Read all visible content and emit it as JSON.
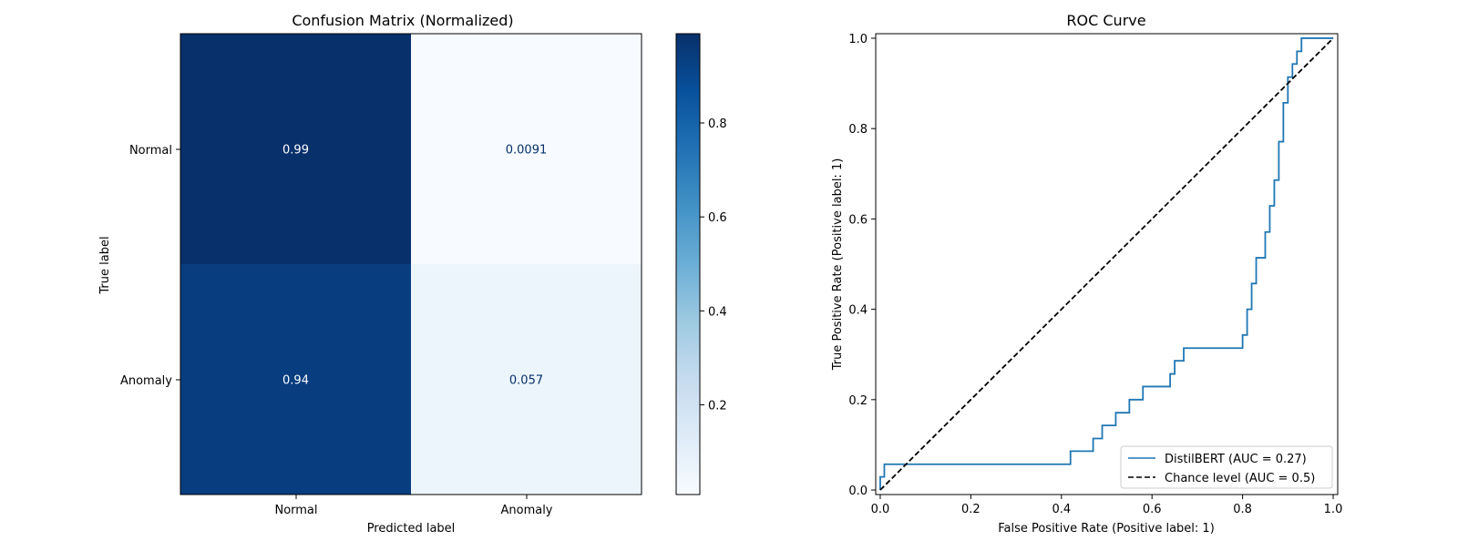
{
  "chart_data": [
    {
      "type": "heatmap",
      "title": "Confusion Matrix (Normalized)",
      "xlabel": "Predicted label",
      "ylabel": "True label",
      "x_categories": [
        "Normal",
        "Anomaly"
      ],
      "y_categories": [
        "Normal",
        "Anomaly"
      ],
      "values": [
        [
          0.99,
          0.0091
        ],
        [
          0.94,
          0.057
        ]
      ],
      "value_labels": [
        [
          "0.99",
          "0.0091"
        ],
        [
          "0.94",
          "0.057"
        ]
      ],
      "colorbar": {
        "colormap": "Blues",
        "range": [
          0.0091,
          0.99
        ],
        "ticks": [
          "0.2",
          "0.4",
          "0.6",
          "0.8"
        ]
      }
    },
    {
      "type": "line",
      "title": "ROC Curve",
      "xlabel": "False Positive Rate (Positive label: 1)",
      "ylabel": "True Positive Rate (Positive label: 1)",
      "xlim": [
        -0.01,
        1.01
      ],
      "ylim": [
        -0.01,
        1.01
      ],
      "x_ticks": [
        "0.0",
        "0.2",
        "0.4",
        "0.6",
        "0.8",
        "1.0"
      ],
      "y_ticks": [
        "0.0",
        "0.2",
        "0.4",
        "0.6",
        "0.8",
        "1.0"
      ],
      "legend_position": "lower-right",
      "series": [
        {
          "name": "DistilBERT (AUC = 0.27)",
          "color": "#1f77b4",
          "style": "solid",
          "x": [
            0.0,
            0.0,
            0.009,
            0.009,
            0.42,
            0.42,
            0.47,
            0.47,
            0.49,
            0.49,
            0.52,
            0.52,
            0.55,
            0.55,
            0.58,
            0.58,
            0.64,
            0.64,
            0.65,
            0.65,
            0.67,
            0.67,
            0.8,
            0.8,
            0.81,
            0.81,
            0.82,
            0.82,
            0.83,
            0.83,
            0.85,
            0.85,
            0.86,
            0.86,
            0.87,
            0.87,
            0.88,
            0.88,
            0.89,
            0.89,
            0.9,
            0.9,
            0.91,
            0.91,
            0.92,
            0.92,
            0.93,
            0.93,
            0.94,
            0.94,
            1.0
          ],
          "y": [
            0.0,
            0.029,
            0.029,
            0.057,
            0.057,
            0.086,
            0.086,
            0.114,
            0.114,
            0.143,
            0.143,
            0.171,
            0.171,
            0.2,
            0.2,
            0.229,
            0.229,
            0.257,
            0.257,
            0.286,
            0.286,
            0.314,
            0.314,
            0.343,
            0.343,
            0.4,
            0.4,
            0.457,
            0.457,
            0.514,
            0.514,
            0.571,
            0.571,
            0.629,
            0.629,
            0.686,
            0.686,
            0.771,
            0.771,
            0.857,
            0.857,
            0.914,
            0.914,
            0.943,
            0.943,
            0.971,
            0.971,
            1.0,
            1.0,
            1.0,
            1.0
          ]
        },
        {
          "name": "Chance level (AUC = 0.5)",
          "color": "#000000",
          "style": "dashed",
          "x": [
            0,
            1
          ],
          "y": [
            0,
            1
          ]
        }
      ]
    }
  ]
}
